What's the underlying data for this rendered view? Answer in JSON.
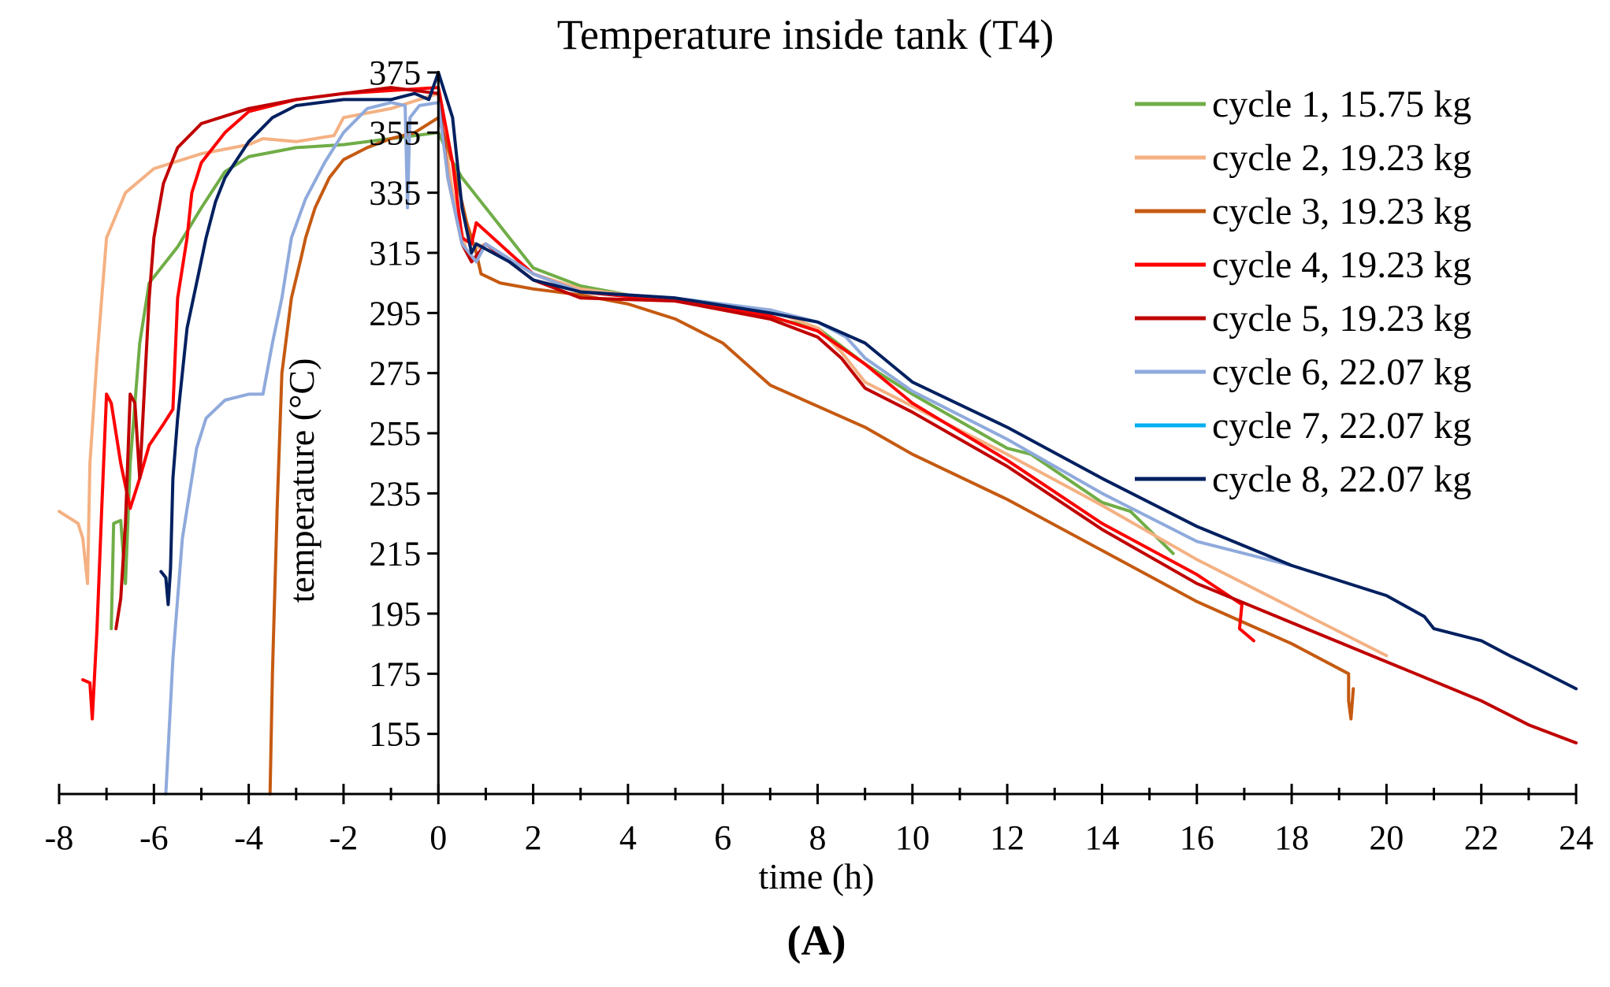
{
  "chart_data": {
    "type": "line",
    "title": "Temperature inside tank (T4)",
    "xlabel": "time (h)",
    "ylabel": "temperature (°C)",
    "caption": "(A)",
    "xlim": [
      -8,
      24
    ],
    "ylim": [
      135,
      375
    ],
    "x_ticks": [
      -8,
      -6,
      -4,
      -2,
      0,
      2,
      4,
      6,
      8,
      10,
      12,
      14,
      16,
      18,
      20,
      22,
      24
    ],
    "x_tick_labels": [
      "-8",
      "-6",
      "-4",
      "-2",
      "0",
      "2",
      "4",
      "6",
      "8",
      "10",
      "12",
      "14",
      "16",
      "18",
      "20",
      "22",
      "24"
    ],
    "y_ticks": [
      155,
      175,
      195,
      215,
      235,
      255,
      275,
      295,
      315,
      335,
      355,
      375
    ],
    "y_tick_labels": [
      "155",
      "175",
      "195",
      "215",
      "235",
      "255",
      "275",
      "295",
      "315",
      "335",
      "355",
      "375"
    ],
    "legend_position": "top-right",
    "series": [
      {
        "name": "cycle 1, 15.75 kg",
        "color": "#70ad47",
        "points": [
          [
            -6.9,
            190
          ],
          [
            -6.85,
            225
          ],
          [
            -6.7,
            226
          ],
          [
            -6.6,
            205
          ],
          [
            -6.5,
            245
          ],
          [
            -6.3,
            285
          ],
          [
            -6.1,
            305
          ],
          [
            -5.5,
            317
          ],
          [
            -5,
            330
          ],
          [
            -4.5,
            342
          ],
          [
            -4,
            347
          ],
          [
            -3,
            350
          ],
          [
            -2,
            351
          ],
          [
            -1,
            353
          ],
          [
            0,
            355
          ],
          [
            0.2,
            348
          ],
          [
            0.5,
            340
          ],
          [
            1,
            330
          ],
          [
            2,
            310
          ],
          [
            3,
            304
          ],
          [
            4,
            301
          ],
          [
            6,
            297
          ],
          [
            8,
            290
          ],
          [
            9,
            278
          ],
          [
            10,
            268
          ],
          [
            12,
            250
          ],
          [
            12.5,
            248
          ],
          [
            14,
            232
          ],
          [
            14.6,
            229
          ],
          [
            15.5,
            215
          ]
        ]
      },
      {
        "name": "cycle 2, 19.23 kg",
        "color": "#f4b183",
        "points": [
          [
            -8,
            229
          ],
          [
            -7.6,
            225
          ],
          [
            -7.5,
            220
          ],
          [
            -7.4,
            205
          ],
          [
            -7.35,
            245
          ],
          [
            -7.2,
            280
          ],
          [
            -7.1,
            300
          ],
          [
            -7,
            320
          ],
          [
            -6.6,
            335
          ],
          [
            -6,
            343
          ],
          [
            -5,
            348
          ],
          [
            -4,
            351
          ],
          [
            -3.7,
            353
          ],
          [
            -3,
            352
          ],
          [
            -2.2,
            354
          ],
          [
            -2,
            360
          ],
          [
            -1,
            363
          ],
          [
            0,
            368
          ],
          [
            0.3,
            335
          ],
          [
            0.6,
            315
          ],
          [
            1,
            318
          ],
          [
            2,
            308
          ],
          [
            3,
            303
          ],
          [
            5,
            299
          ],
          [
            7,
            296
          ],
          [
            8,
            290
          ],
          [
            8.5,
            282
          ],
          [
            9,
            272
          ],
          [
            10,
            264
          ],
          [
            12,
            248
          ],
          [
            14,
            231
          ],
          [
            16,
            213
          ],
          [
            17,
            205
          ],
          [
            18,
            197
          ],
          [
            20,
            181
          ]
        ]
      },
      {
        "name": "cycle 3, 19.23 kg",
        "color": "#c55a11",
        "points": [
          [
            -3.55,
            135
          ],
          [
            -3.5,
            175
          ],
          [
            -3.4,
            230
          ],
          [
            -3.3,
            275
          ],
          [
            -3.1,
            300
          ],
          [
            -2.9,
            313
          ],
          [
            -2.8,
            320
          ],
          [
            -2.6,
            330
          ],
          [
            -2.3,
            340
          ],
          [
            -2,
            346
          ],
          [
            -1.5,
            350
          ],
          [
            -1,
            353
          ],
          [
            -0.5,
            355
          ],
          [
            0,
            360
          ],
          [
            0.3,
            345
          ],
          [
            0.6,
            325
          ],
          [
            0.8,
            315
          ],
          [
            0.9,
            308
          ],
          [
            1.3,
            305
          ],
          [
            2,
            303
          ],
          [
            3,
            301
          ],
          [
            4,
            298
          ],
          [
            5,
            293
          ],
          [
            6,
            285
          ],
          [
            6.5,
            278
          ],
          [
            7,
            271
          ],
          [
            8,
            264
          ],
          [
            9,
            257
          ],
          [
            10,
            248
          ],
          [
            12,
            233
          ],
          [
            14,
            216
          ],
          [
            16,
            199
          ],
          [
            17,
            192
          ],
          [
            18,
            185
          ],
          [
            19.2,
            175
          ],
          [
            19.2,
            166
          ],
          [
            19.25,
            160
          ],
          [
            19.3,
            170
          ]
        ]
      },
      {
        "name": "cycle 4, 19.23 kg",
        "color": "#ff0000",
        "points": [
          [
            -7.5,
            173
          ],
          [
            -7.35,
            172
          ],
          [
            -7.3,
            160
          ],
          [
            -7.2,
            190
          ],
          [
            -7.1,
            230
          ],
          [
            -7,
            268
          ],
          [
            -6.9,
            265
          ],
          [
            -6.7,
            245
          ],
          [
            -6.5,
            230
          ],
          [
            -6.3,
            240
          ],
          [
            -6.1,
            251
          ],
          [
            -5.8,
            258
          ],
          [
            -5.6,
            263
          ],
          [
            -5.5,
            300
          ],
          [
            -5.3,
            320
          ],
          [
            -5.2,
            335
          ],
          [
            -5,
            345
          ],
          [
            -4.5,
            355
          ],
          [
            -4,
            362
          ],
          [
            -3,
            366
          ],
          [
            -2,
            368
          ],
          [
            -1,
            369
          ],
          [
            0,
            370
          ],
          [
            0.3,
            345
          ],
          [
            0.5,
            320
          ],
          [
            0.7,
            318
          ],
          [
            0.8,
            325
          ],
          [
            1.5,
            315
          ],
          [
            2,
            308
          ],
          [
            3,
            302
          ],
          [
            5,
            299
          ],
          [
            7,
            294
          ],
          [
            8,
            289
          ],
          [
            9,
            278
          ],
          [
            10,
            265
          ],
          [
            12,
            246
          ],
          [
            14,
            225
          ],
          [
            16,
            208
          ],
          [
            16.95,
            198
          ],
          [
            16.9,
            190
          ],
          [
            17.2,
            186
          ]
        ]
      },
      {
        "name": "cycle 5, 19.23 kg",
        "color": "#c00000",
        "points": [
          [
            -6.8,
            190
          ],
          [
            -6.7,
            200
          ],
          [
            -6.6,
            225
          ],
          [
            -6.5,
            268
          ],
          [
            -6.4,
            265
          ],
          [
            -6.3,
            240
          ],
          [
            -6.2,
            270
          ],
          [
            -6.1,
            300
          ],
          [
            -6,
            320
          ],
          [
            -5.8,
            338
          ],
          [
            -5.5,
            350
          ],
          [
            -5,
            358
          ],
          [
            -4,
            363
          ],
          [
            -3,
            366
          ],
          [
            -2,
            368
          ],
          [
            -1,
            370
          ],
          [
            0,
            368
          ],
          [
            0.2,
            340
          ],
          [
            0.5,
            318
          ],
          [
            0.7,
            312
          ],
          [
            1,
            318
          ],
          [
            2,
            306
          ],
          [
            3,
            300
          ],
          [
            5,
            299
          ],
          [
            7,
            293
          ],
          [
            8,
            287
          ],
          [
            8.5,
            280
          ],
          [
            9,
            270
          ],
          [
            10,
            262
          ],
          [
            12,
            244
          ],
          [
            14,
            223
          ],
          [
            16,
            205
          ],
          [
            18,
            192
          ],
          [
            20,
            179
          ],
          [
            22,
            166
          ],
          [
            23,
            158
          ],
          [
            24,
            152
          ]
        ]
      },
      {
        "name": "cycle 6, 22.07 kg",
        "color": "#8faadc",
        "points": [
          [
            -5.75,
            135
          ],
          [
            -5.6,
            180
          ],
          [
            -5.4,
            220
          ],
          [
            -5.1,
            250
          ],
          [
            -4.9,
            260
          ],
          [
            -4.5,
            266
          ],
          [
            -4,
            268
          ],
          [
            -3.7,
            268
          ],
          [
            -3.5,
            285
          ],
          [
            -3.3,
            300
          ],
          [
            -3.1,
            320
          ],
          [
            -2.8,
            333
          ],
          [
            -2.4,
            345
          ],
          [
            -2,
            355
          ],
          [
            -1.5,
            363
          ],
          [
            -1,
            365
          ],
          [
            -0.7,
            364
          ],
          [
            -0.65,
            330
          ],
          [
            -0.6,
            360
          ],
          [
            -0.4,
            364
          ],
          [
            0,
            365
          ],
          [
            0.2,
            340
          ],
          [
            0.5,
            318
          ],
          [
            0.8,
            312
          ],
          [
            1,
            318
          ],
          [
            2,
            308
          ],
          [
            3,
            302
          ],
          [
            5,
            300
          ],
          [
            7,
            296
          ],
          [
            8,
            292
          ],
          [
            8.6,
            287
          ],
          [
            9,
            280
          ],
          [
            10,
            269
          ],
          [
            12,
            253
          ],
          [
            14,
            235
          ],
          [
            16,
            219
          ],
          [
            18,
            211
          ]
        ]
      },
      {
        "name": "cycle 7, 22.07 kg",
        "color": "#00b0f0",
        "points": []
      },
      {
        "name": "cycle 8, 22.07 kg",
        "color": "#002060",
        "points": [
          [
            -5.85,
            209
          ],
          [
            -5.75,
            207
          ],
          [
            -5.7,
            198
          ],
          [
            -5.65,
            210
          ],
          [
            -5.6,
            240
          ],
          [
            -5.5,
            260
          ],
          [
            -5.3,
            290
          ],
          [
            -5.1,
            305
          ],
          [
            -4.9,
            320
          ],
          [
            -4.7,
            332
          ],
          [
            -4.5,
            340
          ],
          [
            -4,
            352
          ],
          [
            -3.5,
            360
          ],
          [
            -3,
            364
          ],
          [
            -2,
            366
          ],
          [
            -1,
            366
          ],
          [
            -0.5,
            368
          ],
          [
            -0.2,
            366
          ],
          [
            0,
            375
          ],
          [
            0.3,
            360
          ],
          [
            0.5,
            330
          ],
          [
            0.7,
            315
          ],
          [
            0.8,
            318
          ],
          [
            1.5,
            312
          ],
          [
            2,
            306
          ],
          [
            3,
            302
          ],
          [
            5,
            300
          ],
          [
            7,
            295
          ],
          [
            8,
            292
          ],
          [
            9,
            285
          ],
          [
            10,
            272
          ],
          [
            12,
            257
          ],
          [
            14,
            240
          ],
          [
            16,
            224
          ],
          [
            18,
            211
          ],
          [
            19,
            206
          ],
          [
            20,
            201
          ],
          [
            20.8,
            194
          ],
          [
            21,
            190
          ],
          [
            22,
            186
          ],
          [
            22.6,
            181
          ],
          [
            23,
            178
          ],
          [
            24,
            170
          ]
        ]
      }
    ]
  }
}
